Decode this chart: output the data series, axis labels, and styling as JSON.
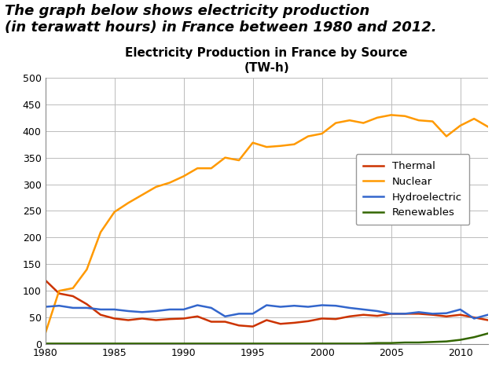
{
  "title_line1": "Electricity Production in France by Source",
  "title_line2": "(TW-h)",
  "header_text": "The graph below shows electricity production\n(in terawatt hours) in France between 1980 and 2012.",
  "years": [
    1980,
    1981,
    1982,
    1983,
    1984,
    1985,
    1986,
    1987,
    1988,
    1989,
    1990,
    1991,
    1992,
    1993,
    1994,
    1995,
    1996,
    1997,
    1998,
    1999,
    2000,
    2001,
    2002,
    2003,
    2004,
    2005,
    2006,
    2007,
    2008,
    2009,
    2010,
    2011,
    2012
  ],
  "thermal": [
    120,
    95,
    90,
    75,
    55,
    48,
    45,
    48,
    45,
    47,
    48,
    52,
    42,
    42,
    35,
    33,
    45,
    38,
    40,
    43,
    48,
    47,
    52,
    55,
    53,
    57,
    57,
    57,
    55,
    52,
    55,
    50,
    45
  ],
  "nuclear": [
    20,
    100,
    105,
    140,
    210,
    248,
    265,
    280,
    295,
    303,
    315,
    330,
    330,
    350,
    345,
    378,
    370,
    372,
    375,
    390,
    395,
    415,
    420,
    415,
    425,
    430,
    428,
    420,
    418,
    390,
    410,
    423,
    408
  ],
  "hydroelectric": [
    70,
    72,
    68,
    68,
    65,
    65,
    62,
    60,
    62,
    65,
    65,
    73,
    68,
    52,
    57,
    57,
    73,
    70,
    72,
    70,
    73,
    72,
    68,
    65,
    62,
    57,
    57,
    60,
    57,
    58,
    65,
    48,
    55
  ],
  "renewables": [
    1,
    1,
    1,
    1,
    1,
    1,
    1,
    1,
    1,
    1,
    1,
    1,
    1,
    1,
    1,
    1,
    1,
    1,
    1,
    1,
    1,
    1,
    1,
    1,
    2,
    2,
    3,
    3,
    4,
    5,
    8,
    13,
    20
  ],
  "thermal_color": "#cc3300",
  "nuclear_color": "#ff9900",
  "hydro_color": "#3366cc",
  "renewables_color": "#336600",
  "ylim": [
    0,
    500
  ],
  "yticks": [
    0,
    50,
    100,
    150,
    200,
    250,
    300,
    350,
    400,
    450,
    500
  ],
  "xticks": [
    1980,
    1985,
    1990,
    1995,
    2000,
    2005,
    2010
  ],
  "grid_color": "#bbbbbb",
  "bg_color": "#ffffff"
}
